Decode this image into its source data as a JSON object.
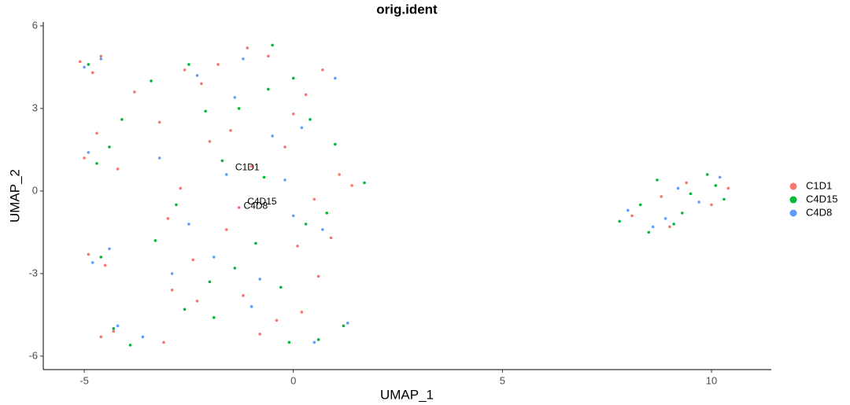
{
  "chart_data": {
    "type": "scatter",
    "title": "orig.ident",
    "x_label": "UMAP_1",
    "y_label": "UMAP_2",
    "xlim": [
      -5.98,
      11.43
    ],
    "ylim": [
      -6.49,
      6.14
    ],
    "xticks": [
      -5,
      0,
      5,
      10
    ],
    "yticks": [
      -6,
      -3,
      0,
      3,
      6
    ],
    "grid": false,
    "legend": "right",
    "series": [
      {
        "name": "C1D1",
        "color": "#F8766D",
        "x": [
          -5.1,
          -4.8,
          -4.6,
          -5.0,
          -4.7,
          -4.2,
          -4.9,
          -4.5,
          -4.3,
          -4.6,
          -3.8,
          -3.2,
          -3.0,
          -2.6,
          -2.2,
          -1.8,
          -1.5,
          -1.0,
          -0.6,
          -0.2,
          0.3,
          0.7,
          1.1,
          -2.9,
          -2.4,
          -1.6,
          -1.2,
          -0.4,
          0.1,
          0.5,
          0.9,
          1.4,
          -2.7,
          -2.0,
          -1.3,
          -0.8,
          0.0,
          0.6,
          -3.1,
          -2.3,
          -1.1,
          0.2,
          8.1,
          8.8,
          9.4,
          10.0,
          10.4,
          9.0
        ],
        "values": [
          4.7,
          4.3,
          4.9,
          1.2,
          2.1,
          0.8,
          -2.3,
          -2.7,
          -5.1,
          -5.3,
          3.6,
          2.5,
          -1.0,
          4.4,
          3.9,
          4.6,
          2.2,
          0.9,
          4.9,
          1.6,
          3.5,
          4.4,
          0.6,
          -3.6,
          -2.5,
          -1.4,
          -3.8,
          -4.7,
          -2.0,
          -0.3,
          -1.7,
          0.2,
          0.1,
          1.8,
          -0.6,
          -5.2,
          2.8,
          -3.1,
          -5.5,
          -4.0,
          5.2,
          -4.4,
          -0.9,
          -0.2,
          0.3,
          -0.5,
          0.1,
          -1.3
        ]
      },
      {
        "name": "C4D15",
        "color": "#00BA38",
        "x": [
          -4.9,
          -4.4,
          -4.7,
          -4.1,
          -4.6,
          -4.3,
          -3.9,
          -3.4,
          -2.8,
          -2.5,
          -2.0,
          -1.7,
          -1.3,
          -0.9,
          -0.5,
          -0.1,
          0.4,
          0.8,
          1.2,
          1.7,
          -2.6,
          -2.1,
          -1.4,
          -0.7,
          0.0,
          0.6,
          1.0,
          -3.3,
          -1.9,
          -0.3,
          0.3,
          -0.6,
          7.8,
          8.3,
          8.7,
          9.1,
          9.5,
          9.9,
          10.3,
          8.5,
          9.3,
          10.1
        ],
        "values": [
          4.6,
          1.6,
          1.0,
          2.6,
          -2.4,
          -5.0,
          -5.6,
          4.0,
          -0.5,
          4.6,
          -3.3,
          1.1,
          3.0,
          -1.9,
          5.3,
          -5.5,
          2.6,
          -0.8,
          -4.9,
          0.3,
          -4.3,
          2.9,
          -2.8,
          0.5,
          4.1,
          -5.4,
          1.7,
          -1.8,
          -4.6,
          -3.5,
          -1.2,
          3.7,
          -1.1,
          -0.5,
          0.4,
          -1.2,
          -0.1,
          0.6,
          -0.3,
          -1.5,
          -0.8,
          0.2
        ]
      },
      {
        "name": "C4D8",
        "color": "#619CFF",
        "x": [
          -5.0,
          -4.6,
          -4.9,
          -4.4,
          -4.8,
          -4.2,
          -3.6,
          -3.2,
          -2.9,
          -2.3,
          -1.9,
          -1.4,
          -1.0,
          -0.5,
          0.0,
          0.5,
          1.0,
          1.3,
          -2.5,
          -1.6,
          -0.8,
          0.2,
          0.7,
          -1.2,
          -0.2,
          8.0,
          8.6,
          9.2,
          9.7,
          10.2,
          8.9
        ],
        "values": [
          4.5,
          4.8,
          1.4,
          -2.1,
          -2.6,
          -4.9,
          -5.3,
          1.2,
          -3.0,
          4.2,
          -2.4,
          3.4,
          -4.2,
          2.0,
          -0.9,
          -5.5,
          4.1,
          -4.8,
          -1.2,
          0.6,
          -3.2,
          2.3,
          -1.4,
          4.8,
          0.4,
          -0.7,
          -1.3,
          0.1,
          -0.4,
          0.5,
          -1.0
        ]
      }
    ],
    "annotations": [
      {
        "text": "C1D1",
        "x": -1.1,
        "y": 0.85
      },
      {
        "text": "C4D15",
        "x": -0.75,
        "y": -0.4
      },
      {
        "text": "C4D8",
        "x": -0.9,
        "y": -0.55
      }
    ]
  }
}
